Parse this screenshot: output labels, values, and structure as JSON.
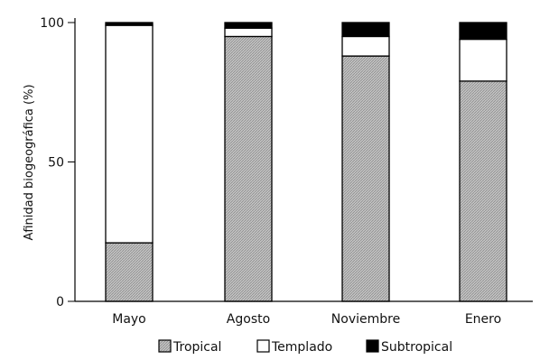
{
  "chart_data": {
    "type": "bar",
    "stacked": true,
    "categories": [
      "Mayo",
      "Agosto",
      "Noviembre",
      "Enero"
    ],
    "series": [
      {
        "name": "Tropical",
        "values": [
          21,
          95,
          88,
          79
        ],
        "color": "#b4b4b4"
      },
      {
        "name": "Templado",
        "values": [
          78,
          3,
          7,
          15
        ],
        "color": "#ffffff"
      },
      {
        "name": "Subtropical",
        "values": [
          1,
          2,
          5,
          6
        ],
        "color": "#000000"
      }
    ],
    "title": "",
    "xlabel": "",
    "ylabel": "Afinidad biogeográfica  (%)",
    "ylim": [
      0,
      100
    ],
    "yticks": [
      "0",
      "50",
      "100"
    ],
    "legend_position": "bottom",
    "grid": false
  }
}
